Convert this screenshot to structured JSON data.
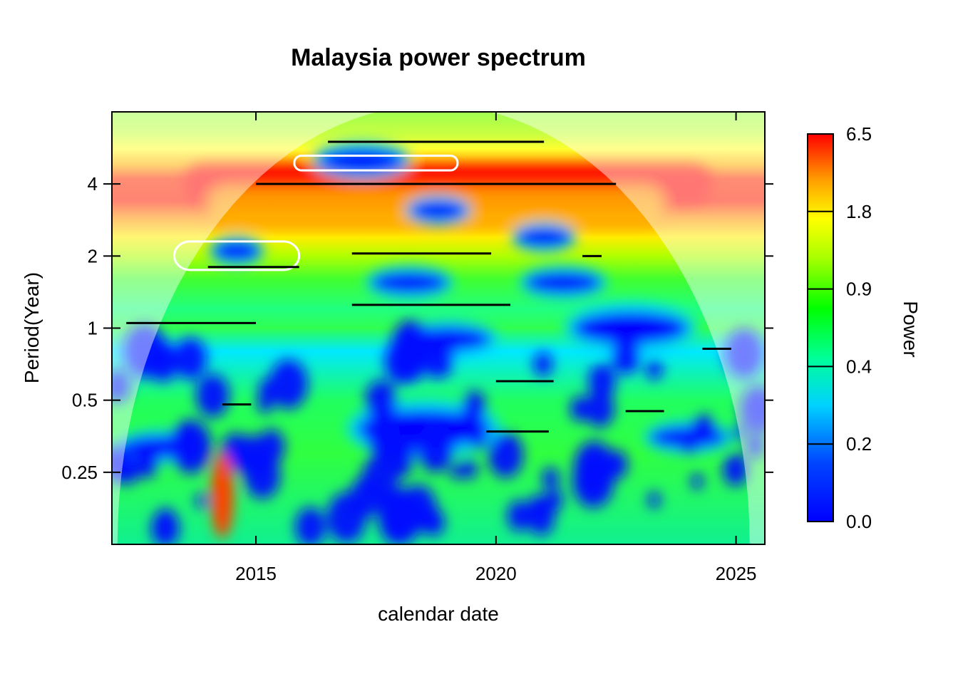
{
  "chart_data": {
    "type": "heatmap",
    "title": "Malaysia power spectrum",
    "xlabel": "calendar date",
    "ylabel": "Period(Year)",
    "xlim": [
      2012,
      2025.6
    ],
    "x_ticks": [
      {
        "value": 2015,
        "label": "2015"
      },
      {
        "value": 2020,
        "label": "2020"
      },
      {
        "value": 2025,
        "label": "2025"
      }
    ],
    "y_scale": "log2",
    "ylim": [
      0.125,
      8
    ],
    "y_ticks": [
      {
        "value": 0.25,
        "label": "0.25"
      },
      {
        "value": 0.5,
        "label": "0.5"
      },
      {
        "value": 1,
        "label": "1"
      },
      {
        "value": 2,
        "label": "2"
      },
      {
        "value": 4,
        "label": "4"
      }
    ],
    "colorbar": {
      "label": "Power",
      "ticks": [
        "0.0",
        "0.2",
        "0.4",
        "0.9",
        "1.8",
        "6.5"
      ],
      "colors": [
        "#0000ff",
        "#0055ff",
        "#00c8ff",
        "#00ffb4",
        "#00ff00",
        "#b4ff00",
        "#ffff00",
        "#ffb400",
        "#ff6400",
        "#ff0000"
      ]
    },
    "cone_of_influence": "shaded outside central arch",
    "high_power_bands": [
      {
        "period": 4,
        "x_start": 2013.5,
        "x_end": 2024.5,
        "power": 6.5
      },
      {
        "period": 3.2,
        "x_start": 2014.0,
        "x_end": 2023.5,
        "power": 5.0
      }
    ],
    "low_power_regions": [
      {
        "x": 2017.2,
        "period": 5.0,
        "rx": 0.9,
        "power": 0.1
      },
      {
        "x": 2018.8,
        "period": 3.1,
        "rx": 0.6,
        "power": 0.1
      },
      {
        "x": 2021.0,
        "period": 2.4,
        "rx": 0.6,
        "power": 0.1
      },
      {
        "x": 2014.6,
        "period": 2.1,
        "rx": 0.5,
        "power": 0.1
      },
      {
        "x": 2018.2,
        "period": 1.55,
        "rx": 0.8,
        "power": 0.15
      },
      {
        "x": 2021.4,
        "period": 1.55,
        "rx": 0.8,
        "power": 0.15
      },
      {
        "x": 2022.8,
        "period": 1.0,
        "rx": 1.2,
        "power": 0.05
      },
      {
        "x": 2019.0,
        "period": 0.9,
        "rx": 0.9,
        "power": 0.1
      },
      {
        "x": 2018.5,
        "period": 0.38,
        "rx": 1.4,
        "power": 0.0
      },
      {
        "x": 2013.0,
        "period": 0.32,
        "rx": 0.8,
        "power": 0.05
      },
      {
        "x": 2024.0,
        "period": 0.35,
        "rx": 0.8,
        "power": 0.05
      }
    ],
    "ridge_lines": [
      {
        "x_start": 2016.5,
        "x_end": 2021.0,
        "period": 6.0
      },
      {
        "x_start": 2015.0,
        "x_end": 2022.5,
        "period": 4.0
      },
      {
        "x_start": 2014.0,
        "x_end": 2015.9,
        "period": 1.8
      },
      {
        "x_start": 2017.0,
        "x_end": 2019.9,
        "period": 2.05
      },
      {
        "x_start": 2021.8,
        "x_end": 2022.2,
        "period": 2.0
      },
      {
        "x_start": 2012.3,
        "x_end": 2015.0,
        "period": 1.05
      },
      {
        "x_start": 2017.0,
        "x_end": 2020.3,
        "period": 1.25
      },
      {
        "x_start": 2020.0,
        "x_end": 2021.2,
        "period": 0.6
      },
      {
        "x_start": 2019.8,
        "x_end": 2021.1,
        "period": 0.37
      },
      {
        "x_start": 2014.3,
        "x_end": 2014.9,
        "period": 0.48
      },
      {
        "x_start": 2022.7,
        "x_end": 2023.5,
        "period": 0.45
      },
      {
        "x_start": 2024.3,
        "x_end": 2024.9,
        "period": 0.82
      }
    ]
  }
}
